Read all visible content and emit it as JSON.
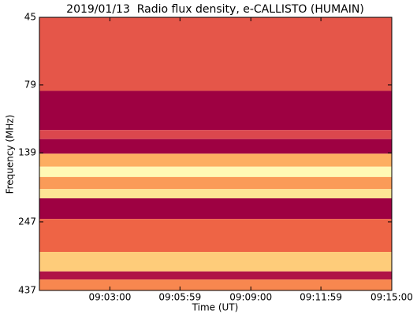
{
  "chart_data": {
    "type": "heatmap",
    "title": "2019/01/13  Radio flux density, e-CALLISTO (HUMAIN)",
    "xlabel": "Time (UT)",
    "ylabel": "Frequency (MHz)",
    "xlim": [
      32400,
      33300
    ],
    "xticks": [
      {
        "value": 32580,
        "label": "09:03:00"
      },
      {
        "value": 32759,
        "label": "09:05:59"
      },
      {
        "value": 32940,
        "label": "09:09:00"
      },
      {
        "value": 33119,
        "label": "09:11:59"
      },
      {
        "value": 33300,
        "label": "09:15:00"
      }
    ],
    "ylim": [
      45,
      437
    ],
    "yticks": [
      45,
      79,
      139,
      247,
      437
    ],
    "ylog": true,
    "yinverted": true,
    "colormap": [
      "#9e0142",
      "#d53e4f",
      "#f46d43",
      "#fdae61",
      "#fee08b",
      "#ffffbf",
      "#e6f598"
    ],
    "bands": [
      {
        "range": [
          45,
          83
        ],
        "value": 0.25
      },
      {
        "range": [
          83,
          115
        ],
        "value": 0.0
      },
      {
        "range": [
          115,
          124
        ],
        "value": 0.2
      },
      {
        "range": [
          124,
          140
        ],
        "value": 0.0
      },
      {
        "range": [
          140,
          156
        ],
        "value": 0.5
      },
      {
        "range": [
          156,
          170
        ],
        "value": 0.8
      },
      {
        "range": [
          170,
          188
        ],
        "value": 0.45
      },
      {
        "range": [
          188,
          203
        ],
        "value": 0.7
      },
      {
        "range": [
          203,
          241
        ],
        "value": 0.0
      },
      {
        "range": [
          241,
          317
        ],
        "value": 0.3
      },
      {
        "range": [
          317,
          373
        ],
        "value": 0.6
      },
      {
        "range": [
          373,
          399
        ],
        "value": 0.05
      },
      {
        "range": [
          399,
          437
        ],
        "value": 0.4
      }
    ]
  }
}
